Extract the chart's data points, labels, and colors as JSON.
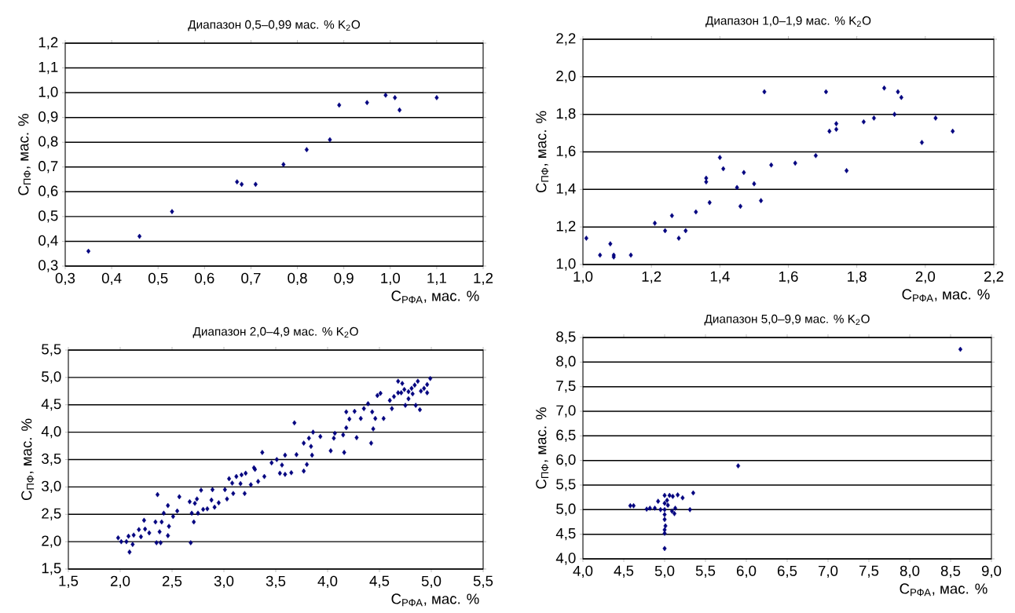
{
  "chart_data": [
    {
      "type": "scatter",
      "title": "Диапазон 0,5–0,99 мас. % K$_{2}$O",
      "xlabel": "C$_{РФА}$, мас. %",
      "ylabel": "C$_{ПФ}$, мас. %",
      "color": "#00007f",
      "marker": "diamond",
      "grid": "y",
      "xlim": [
        0.3,
        1.2
      ],
      "ylim": [
        0.3,
        1.2
      ],
      "xticks": [
        {
          "value": 0.3,
          "label": "0,3"
        },
        {
          "value": 0.4,
          "label": "0,4"
        },
        {
          "value": 0.5,
          "label": "0,5"
        },
        {
          "value": 0.6,
          "label": "0,6"
        },
        {
          "value": 0.7,
          "label": "0,7"
        },
        {
          "value": 0.8,
          "label": "0,8"
        },
        {
          "value": 0.9,
          "label": "0,9"
        },
        {
          "value": 1.0,
          "label": "1,0"
        },
        {
          "value": 1.1,
          "label": "1,1"
        },
        {
          "value": 1.2,
          "label": "1,2"
        }
      ],
      "yticks": [
        {
          "value": 0.3,
          "label": "0,3"
        },
        {
          "value": 0.4,
          "label": "0,4"
        },
        {
          "value": 0.5,
          "label": "0,5"
        },
        {
          "value": 0.6,
          "label": "0,6"
        },
        {
          "value": 0.7,
          "label": "0,7"
        },
        {
          "value": 0.8,
          "label": "0,8"
        },
        {
          "value": 0.9,
          "label": "0,9"
        },
        {
          "value": 1.0,
          "label": "1,0"
        },
        {
          "value": 1.1,
          "label": "1,1"
        },
        {
          "value": 1.2,
          "label": "1,2"
        }
      ],
      "x": [
        0.35,
        0.46,
        0.53,
        0.67,
        0.68,
        0.71,
        0.77,
        0.82,
        0.87,
        0.89,
        0.95,
        0.99,
        1.01,
        1.02,
        1.1
      ],
      "values": [
        0.36,
        0.42,
        0.52,
        0.64,
        0.63,
        0.63,
        0.71,
        0.77,
        0.81,
        0.95,
        0.96,
        0.99,
        0.98,
        0.93,
        0.98
      ]
    },
    {
      "type": "scatter",
      "title": "Диапазон 1,0–1,9 мас. % K$_{2}$O",
      "xlabel": "C$_{РФА}$, мас. %",
      "ylabel": "C$_{ПФ}$, мас. %",
      "color": "#00007f",
      "marker": "diamond",
      "grid": "y",
      "xlim": [
        1.0,
        2.2
      ],
      "ylim": [
        1.0,
        2.2
      ],
      "xticks": [
        {
          "value": 1.0,
          "label": "1,0"
        },
        {
          "value": 1.2,
          "label": "1,2"
        },
        {
          "value": 1.4,
          "label": "1,4"
        },
        {
          "value": 1.6,
          "label": "1,6"
        },
        {
          "value": 1.8,
          "label": "1,8"
        },
        {
          "value": 2.0,
          "label": "2,0"
        },
        {
          "value": 2.2,
          "label": "2,2"
        }
      ],
      "yticks": [
        {
          "value": 1.0,
          "label": "1,0"
        },
        {
          "value": 1.2,
          "label": "1,2"
        },
        {
          "value": 1.4,
          "label": "1,4"
        },
        {
          "value": 1.6,
          "label": "1,6"
        },
        {
          "value": 1.8,
          "label": "1,8"
        },
        {
          "value": 2.0,
          "label": "2,0"
        },
        {
          "value": 2.2,
          "label": "2,2"
        }
      ],
      "x": [
        1.01,
        1.05,
        1.08,
        1.09,
        1.09,
        1.14,
        1.21,
        1.24,
        1.26,
        1.28,
        1.3,
        1.33,
        1.36,
        1.36,
        1.37,
        1.4,
        1.41,
        1.45,
        1.46,
        1.47,
        1.5,
        1.52,
        1.53,
        1.55,
        1.62,
        1.68,
        1.71,
        1.72,
        1.74,
        1.74,
        1.77,
        1.82,
        1.85,
        1.88,
        1.91,
        1.92,
        1.93,
        1.99,
        2.03,
        2.08
      ],
      "values": [
        1.14,
        1.05,
        1.11,
        1.05,
        1.04,
        1.05,
        1.22,
        1.18,
        1.26,
        1.14,
        1.18,
        1.28,
        1.46,
        1.44,
        1.33,
        1.57,
        1.51,
        1.41,
        1.31,
        1.49,
        1.43,
        1.34,
        1.92,
        1.53,
        1.54,
        1.58,
        1.92,
        1.71,
        1.75,
        1.72,
        1.5,
        1.76,
        1.78,
        1.94,
        1.8,
        1.92,
        1.89,
        1.65,
        1.78,
        1.71
      ]
    },
    {
      "type": "scatter",
      "title": "Диапазон 2,0–4,9 мас. % K$_{2}$O",
      "xlabel": "C$_{РФА}$, мас. %",
      "ylabel": "C$_{ПФ}$, мас. %",
      "color": "#00007f",
      "marker": "diamond",
      "grid": "y",
      "xlim": [
        1.5,
        5.5
      ],
      "ylim": [
        1.5,
        5.5
      ],
      "xticks": [
        {
          "value": 1.5,
          "label": "1,5"
        },
        {
          "value": 2.0,
          "label": "2,0"
        },
        {
          "value": 2.5,
          "label": "2,5"
        },
        {
          "value": 3.0,
          "label": "3,0"
        },
        {
          "value": 3.5,
          "label": "3,5"
        },
        {
          "value": 4.0,
          "label": "4,0"
        },
        {
          "value": 4.5,
          "label": "4,5"
        },
        {
          "value": 5.0,
          "label": "5,0"
        },
        {
          "value": 5.5,
          "label": "5,5"
        }
      ],
      "yticks": [
        {
          "value": 1.5,
          "label": "1,5"
        },
        {
          "value": 2.0,
          "label": "2,0"
        },
        {
          "value": 2.5,
          "label": "2,5"
        },
        {
          "value": 3.0,
          "label": "3,0"
        },
        {
          "value": 3.5,
          "label": "3,5"
        },
        {
          "value": 4.0,
          "label": "4,0"
        },
        {
          "value": 4.5,
          "label": "4,5"
        },
        {
          "value": 5.0,
          "label": "5,0"
        },
        {
          "value": 5.5,
          "label": "5,5"
        }
      ],
      "x": [
        1.98,
        2.01,
        2.06,
        2.09,
        2.08,
        2.12,
        2.13,
        2.18,
        2.2,
        2.23,
        2.24,
        2.28,
        2.34,
        2.36,
        2.35,
        2.38,
        2.39,
        2.4,
        2.42,
        2.46,
        2.46,
        2.47,
        2.51,
        2.55,
        2.57,
        2.67,
        2.68,
        2.69,
        2.71,
        2.72,
        2.74,
        2.75,
        2.78,
        2.8,
        2.84,
        2.88,
        2.89,
        2.91,
        2.95,
        3.01,
        3.03,
        3.05,
        3.08,
        3.09,
        3.12,
        3.16,
        3.17,
        3.2,
        3.21,
        3.26,
        3.29,
        3.3,
        3.33,
        3.37,
        3.39,
        3.46,
        3.51,
        3.54,
        3.56,
        3.59,
        3.59,
        3.65,
        3.68,
        3.7,
        3.77,
        3.77,
        3.8,
        3.82,
        3.85,
        3.86,
        3.84,
        3.93,
        4.03,
        4.06,
        4.07,
        4.15,
        4.16,
        4.18,
        4.18,
        4.21,
        4.26,
        4.28,
        4.32,
        4.35,
        4.39,
        4.42,
        4.43,
        4.44,
        4.46,
        4.48,
        4.51,
        4.54,
        4.6,
        4.62,
        4.64,
        4.68,
        4.68,
        4.72,
        4.74,
        4.75,
        4.78,
        4.81,
        4.84,
        4.85,
        4.87,
        4.89,
        4.9,
        4.93,
        4.96,
        4.99,
        4.82,
        4.78,
        4.71,
        4.96
      ],
      "values": [
        2.07,
        2.0,
        2.0,
        1.81,
        2.1,
        1.95,
        2.12,
        2.22,
        2.09,
        2.39,
        2.23,
        2.16,
        2.36,
        2.86,
        1.98,
        2.18,
        1.98,
        2.36,
        2.52,
        2.66,
        2.11,
        2.28,
        2.46,
        2.56,
        2.82,
        2.73,
        1.98,
        2.52,
        2.36,
        2.7,
        2.78,
        2.52,
        2.94,
        2.59,
        2.6,
        2.76,
        2.95,
        2.63,
        2.71,
        2.95,
        2.78,
        3.15,
        3.07,
        2.88,
        3.19,
        3.06,
        3.22,
        2.88,
        3.25,
        3.04,
        3.35,
        3.32,
        3.1,
        3.63,
        3.19,
        3.44,
        3.5,
        3.25,
        3.4,
        3.58,
        3.23,
        3.26,
        4.17,
        3.59,
        3.29,
        3.8,
        3.41,
        3.89,
        3.58,
        4.0,
        3.74,
        3.92,
        3.66,
        3.89,
        3.98,
        3.95,
        3.63,
        4.08,
        4.37,
        4.24,
        4.38,
        3.9,
        4.25,
        4.43,
        4.52,
        3.8,
        4.37,
        4.06,
        4.25,
        4.67,
        4.71,
        4.25,
        4.58,
        4.43,
        4.65,
        4.72,
        4.93,
        4.89,
        4.78,
        4.49,
        4.74,
        4.8,
        4.86,
        4.49,
        4.93,
        4.41,
        4.75,
        4.8,
        4.87,
        4.98,
        4.7,
        4.61,
        4.72,
        4.72
      ]
    },
    {
      "type": "scatter",
      "title": "Диапазон 5,0–9,9 мас. % K$_{2}$O",
      "xlabel": "C$_{РФА}$, мас. %",
      "ylabel": "C$_{ПФ}$, мас. %",
      "color": "#00007f",
      "marker": "diamond",
      "grid": "y",
      "xlim": [
        4.0,
        9.0
      ],
      "ylim": [
        4.0,
        8.5
      ],
      "xticks": [
        {
          "value": 4.0,
          "label": "4,0"
        },
        {
          "value": 4.5,
          "label": "4,5"
        },
        {
          "value": 5.0,
          "label": "5,0"
        },
        {
          "value": 5.5,
          "label": "5,5"
        },
        {
          "value": 6.0,
          "label": "6,0"
        },
        {
          "value": 6.5,
          "label": "6,5"
        },
        {
          "value": 7.0,
          "label": "7,0"
        },
        {
          "value": 7.5,
          "label": "7,5"
        },
        {
          "value": 8.0,
          "label": "8,0"
        },
        {
          "value": 8.5,
          "label": "8,5"
        },
        {
          "value": 9.0,
          "label": "9,0"
        }
      ],
      "yticks": [
        {
          "value": 4.0,
          "label": "4,0"
        },
        {
          "value": 4.5,
          "label": "4,5"
        },
        {
          "value": 5.0,
          "label": "5,0"
        },
        {
          "value": 5.5,
          "label": "5,5"
        },
        {
          "value": 6.0,
          "label": "6,0"
        },
        {
          "value": 6.5,
          "label": "6,5"
        },
        {
          "value": 7.0,
          "label": "7,0"
        },
        {
          "value": 7.5,
          "label": "7,5"
        },
        {
          "value": 8.0,
          "label": "8,0"
        },
        {
          "value": 8.5,
          "label": "8,5"
        }
      ],
      "x": [
        4.58,
        4.62,
        4.78,
        4.82,
        4.88,
        4.92,
        4.95,
        5.0,
        5.0,
        5.0,
        5.0,
        5.0,
        5.01,
        5.0,
        5.0,
        5.0,
        5.03,
        5.04,
        5.06,
        5.09,
        5.1,
        5.12,
        5.13,
        5.16,
        5.22,
        5.31,
        5.35,
        5.9,
        8.62
      ],
      "values": [
        5.08,
        5.08,
        5.01,
        5.03,
        5.03,
        5.17,
        5.0,
        5.29,
        5.13,
        5.0,
        4.9,
        4.8,
        4.67,
        4.59,
        4.52,
        4.21,
        5.19,
        5.09,
        5.29,
        4.97,
        5.27,
        4.92,
        5.03,
        5.3,
        5.24,
        5.0,
        5.34,
        5.89,
        8.26
      ]
    }
  ]
}
